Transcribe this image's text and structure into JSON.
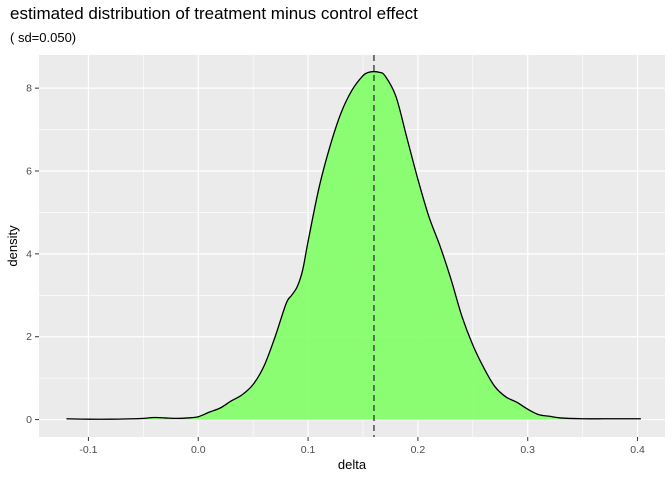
{
  "chart_data": {
    "type": "area",
    "title": "estimated distribution of treatment minus control effect",
    "subtitle": "( sd=0.050)",
    "xlabel": "delta",
    "ylabel": "density",
    "xlim": [
      -0.145,
      0.425
    ],
    "ylim": [
      -0.42,
      8.8
    ],
    "x_ticks": [
      -0.1,
      0.0,
      0.1,
      0.2,
      0.3,
      0.4
    ],
    "x_tick_labels": [
      "-0.1",
      "0.0",
      "0.1",
      "0.2",
      "0.3",
      "0.4"
    ],
    "y_ticks": [
      0,
      2,
      4,
      6,
      8
    ],
    "y_tick_labels": [
      "0",
      "2",
      "4",
      "6",
      "8"
    ],
    "grid": true,
    "fill_color": "#7FFF66",
    "line_color": "#000000",
    "panel_color": "#EBEBEB",
    "vline": {
      "x": 0.16,
      "style": "dashed"
    },
    "series": [
      {
        "x": [
          -0.12,
          -0.1,
          -0.08,
          -0.06,
          -0.05,
          -0.04,
          -0.03,
          -0.02,
          -0.01,
          0.0,
          0.01,
          0.02,
          0.03,
          0.04,
          0.05,
          0.06,
          0.07,
          0.08,
          0.085,
          0.09,
          0.095,
          0.1,
          0.11,
          0.12,
          0.13,
          0.14,
          0.15,
          0.155,
          0.16,
          0.165,
          0.17,
          0.18,
          0.19,
          0.2,
          0.21,
          0.22,
          0.23,
          0.24,
          0.25,
          0.26,
          0.27,
          0.28,
          0.29,
          0.3,
          0.31,
          0.32,
          0.33,
          0.35,
          0.37,
          0.39,
          0.403
        ],
        "y": [
          0.02,
          0.01,
          0.01,
          0.02,
          0.03,
          0.05,
          0.04,
          0.03,
          0.04,
          0.07,
          0.18,
          0.28,
          0.45,
          0.6,
          0.85,
          1.3,
          2.0,
          2.8,
          3.0,
          3.2,
          3.6,
          4.3,
          5.6,
          6.6,
          7.4,
          7.95,
          8.3,
          8.38,
          8.4,
          8.38,
          8.3,
          7.8,
          6.8,
          5.8,
          4.9,
          4.2,
          3.4,
          2.5,
          1.8,
          1.25,
          0.8,
          0.55,
          0.42,
          0.25,
          0.12,
          0.08,
          0.04,
          0.02,
          0.02,
          0.02,
          0.02
        ]
      }
    ]
  }
}
